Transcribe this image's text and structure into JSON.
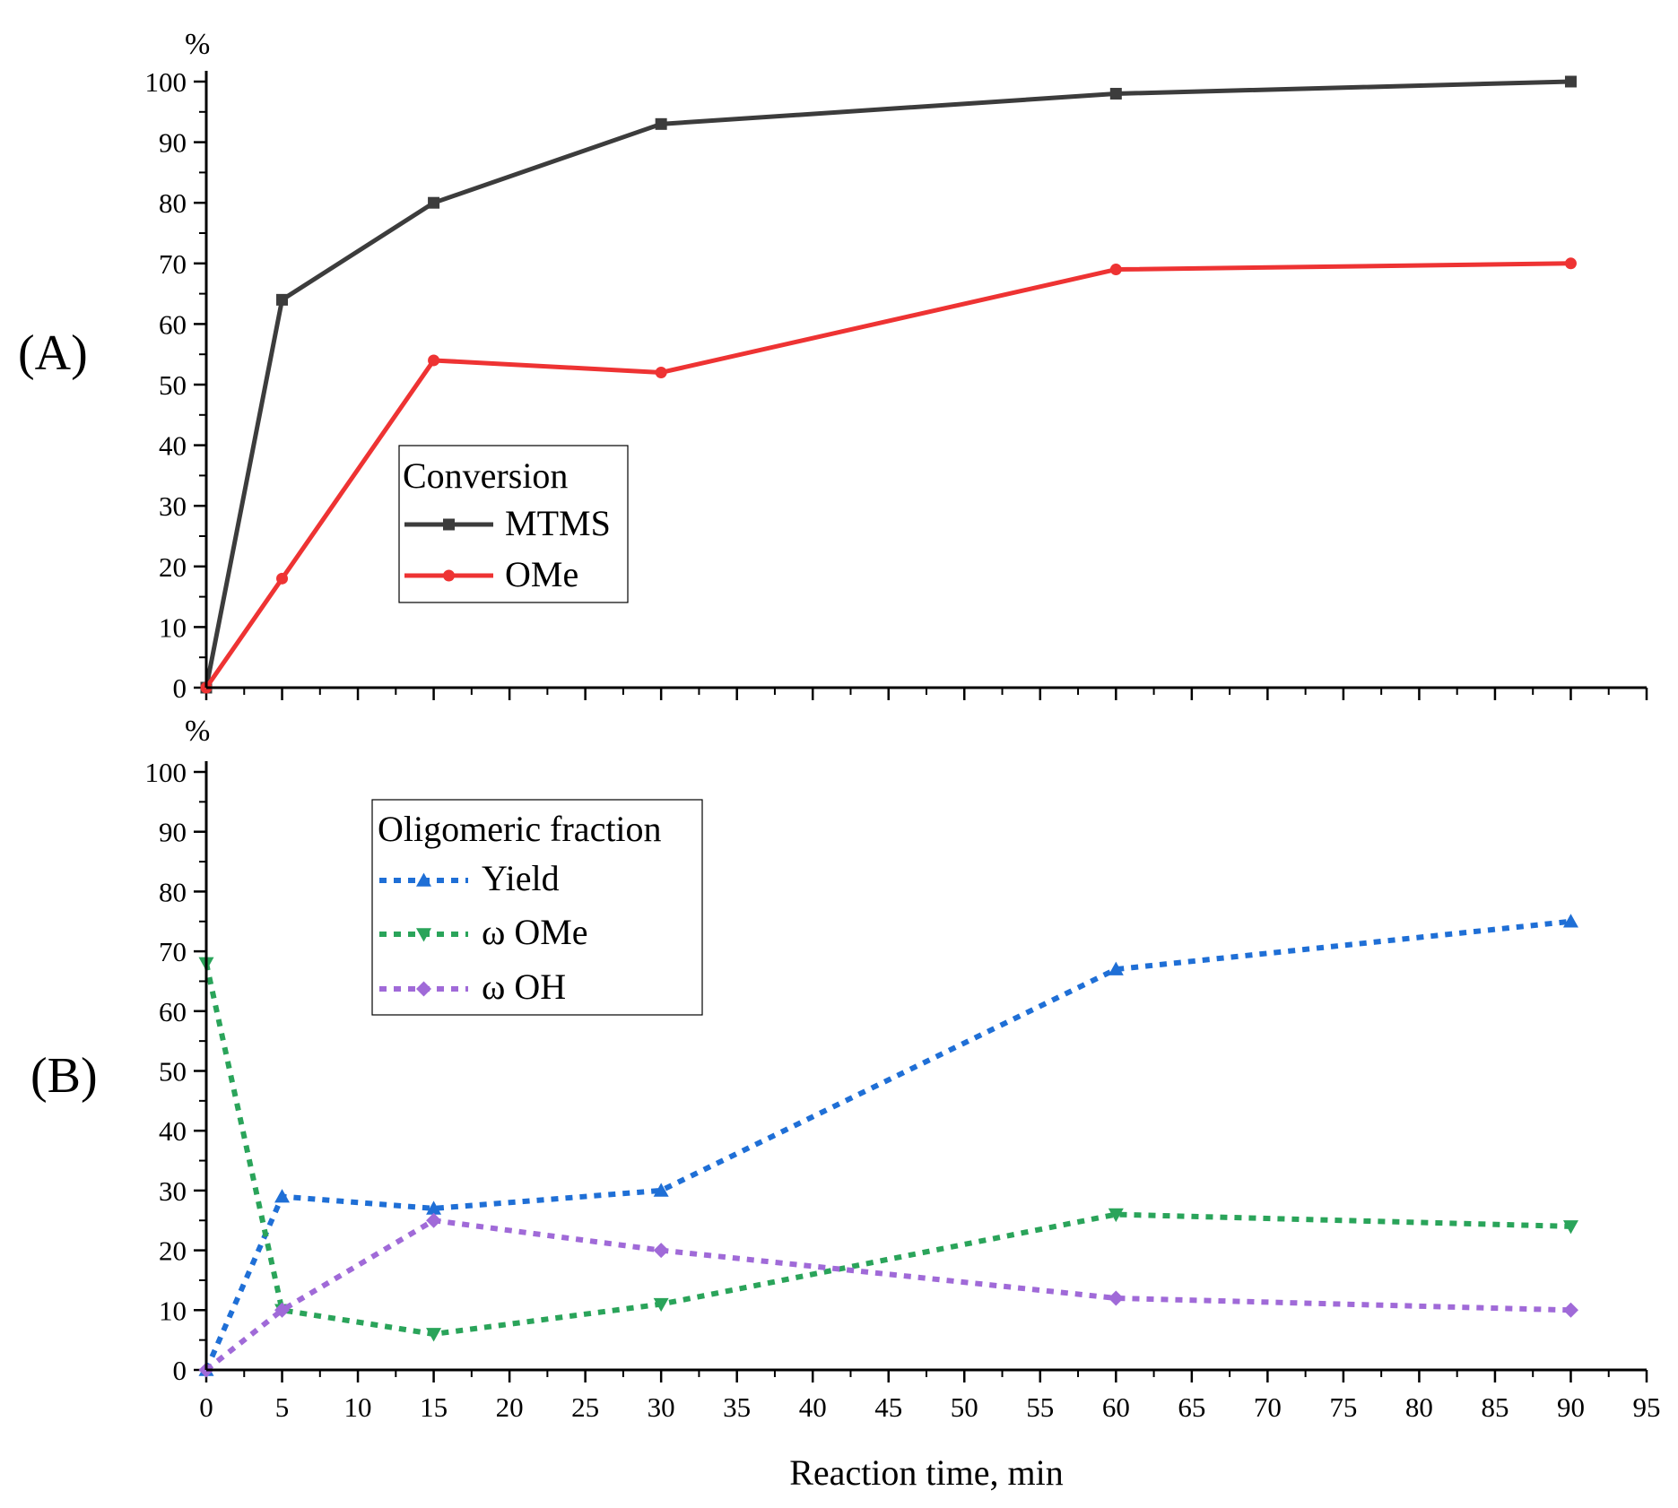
{
  "chart_data": [
    {
      "panel_label": "(A)",
      "type": "line",
      "y_unit": "%",
      "xlim": [
        0,
        95
      ],
      "ylim": [
        0,
        100
      ],
      "y_ticks": [
        0,
        10,
        20,
        30,
        40,
        50,
        60,
        70,
        80,
        90,
        100
      ],
      "legend": {
        "title": "Conversion",
        "placement": "center-left"
      },
      "series": [
        {
          "name": "MTMS",
          "color": "#3c3c3c",
          "line": "solid",
          "marker": "square",
          "x": [
            0,
            5,
            15,
            30,
            60,
            90
          ],
          "y": [
            0,
            64,
            80,
            93,
            98,
            100
          ]
        },
        {
          "name": "OMe",
          "color": "#ee3333",
          "line": "solid",
          "marker": "circle",
          "x": [
            0,
            5,
            15,
            30,
            60,
            90
          ],
          "y": [
            0,
            18,
            54,
            52,
            69,
            70
          ]
        }
      ]
    },
    {
      "panel_label": "(B)",
      "type": "line",
      "y_unit": "%",
      "xlim": [
        0,
        95
      ],
      "ylim": [
        0,
        100
      ],
      "x_ticks": [
        0,
        5,
        10,
        15,
        20,
        25,
        30,
        35,
        40,
        45,
        50,
        55,
        60,
        65,
        70,
        75,
        80,
        85,
        90,
        95
      ],
      "y_ticks": [
        0,
        10,
        20,
        30,
        40,
        50,
        60,
        70,
        80,
        90,
        100
      ],
      "xlabel": "Reaction time, min",
      "legend": {
        "title": "Oligomeric fraction",
        "placement": "top-left"
      },
      "series": [
        {
          "name": "Yield",
          "color": "#1f6fd6",
          "line": "dotted",
          "marker": "triangle-up",
          "x": [
            0,
            5,
            15,
            30,
            60,
            90
          ],
          "y": [
            0,
            29,
            27,
            30,
            67,
            75
          ]
        },
        {
          "name": "ω OMe",
          "color": "#2aa45a",
          "line": "dotted",
          "marker": "triangle-down",
          "x": [
            0,
            5,
            15,
            30,
            60,
            90
          ],
          "y": [
            68,
            10,
            6,
            11,
            26,
            24
          ]
        },
        {
          "name": "ω OH",
          "color": "#a06ad8",
          "line": "dotted",
          "marker": "diamond",
          "x": [
            0,
            5,
            15,
            30,
            60,
            90
          ],
          "y": [
            0,
            10,
            25,
            20,
            12,
            10
          ]
        }
      ]
    }
  ]
}
